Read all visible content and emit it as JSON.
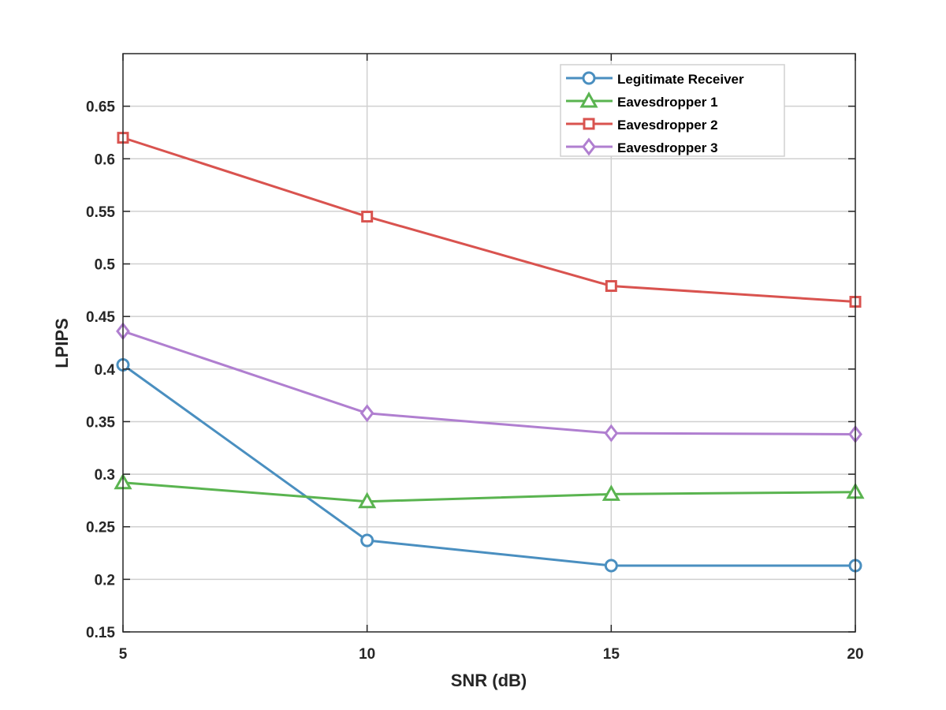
{
  "chart_data": {
    "type": "line",
    "title": "",
    "xlabel": "SNR (dB)",
    "ylabel": "LPIPS",
    "x": [
      5,
      10,
      15,
      20
    ],
    "xlim": [
      5,
      20
    ],
    "ylim": [
      0.15,
      0.7
    ],
    "xticks": [
      "5",
      "10",
      "15",
      "20"
    ],
    "yticks": [
      "0.15",
      "0.2",
      "0.25",
      "0.3",
      "0.35",
      "0.4",
      "0.45",
      "0.5",
      "0.55",
      "0.6",
      "0.65"
    ],
    "grid": true,
    "legend_position": "top-right",
    "series": [
      {
        "name": "Legitimate Receiver",
        "values": [
          0.404,
          0.237,
          0.213,
          0.213
        ],
        "color": "#4a8fc0",
        "marker": "circle"
      },
      {
        "name": "Eavesdropper 1",
        "values": [
          0.292,
          0.274,
          0.281,
          0.283
        ],
        "color": "#5ab450",
        "marker": "triangle"
      },
      {
        "name": "Eavesdropper 2",
        "values": [
          0.62,
          0.545,
          0.479,
          0.464
        ],
        "color": "#d9534f",
        "marker": "square"
      },
      {
        "name": "Eavesdropper 3",
        "values": [
          0.436,
          0.358,
          0.339,
          0.338
        ],
        "color": "#b07fd0",
        "marker": "diamond"
      }
    ]
  }
}
